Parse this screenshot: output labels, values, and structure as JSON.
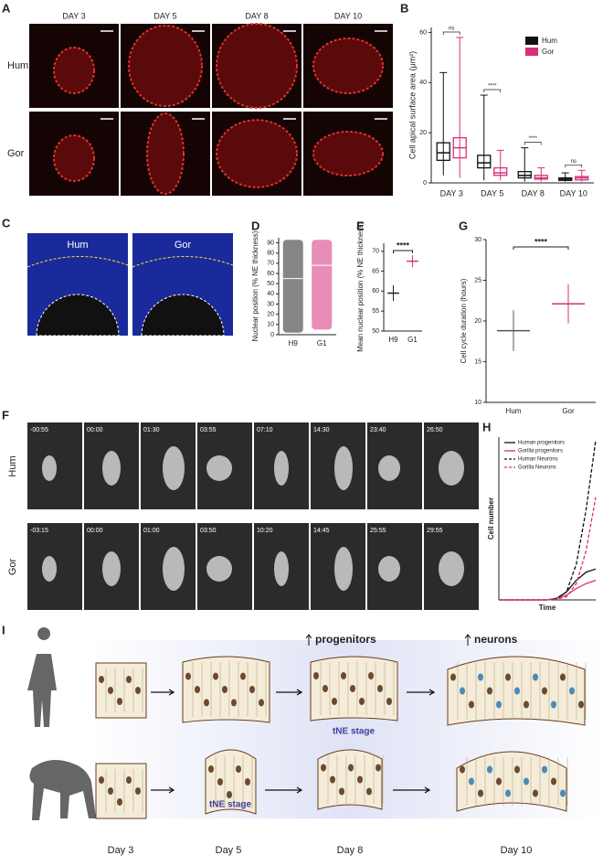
{
  "panels": {
    "A": {
      "label": "A",
      "columns": [
        "DAY 3",
        "DAY 5",
        "DAY 8",
        "DAY 10"
      ],
      "rows": [
        "Hum",
        "Gor"
      ]
    },
    "B": {
      "label": "B",
      "type": "box",
      "ylabel": "Cell apical surface area (μm²)",
      "categories": [
        "DAY 3",
        "DAY 5",
        "DAY 8",
        "DAY 10"
      ],
      "ylim": [
        0,
        62
      ],
      "yticks": [
        0,
        20,
        40,
        60
      ],
      "series": [
        {
          "name": "Hum",
          "color": "#111111",
          "boxes": [
            {
              "min": 3,
              "q1": 9,
              "median": 12,
              "q3": 16,
              "max": 44
            },
            {
              "min": 1,
              "q1": 6,
              "median": 8,
              "q3": 11,
              "max": 35
            },
            {
              "min": 0.5,
              "q1": 2,
              "median": 3,
              "q3": 4.5,
              "max": 14
            },
            {
              "min": 0.5,
              "q1": 1,
              "median": 1.5,
              "q3": 2,
              "max": 4
            }
          ]
        },
        {
          "name": "Gor",
          "color": "#d6307a",
          "boxes": [
            {
              "min": 2,
              "q1": 10,
              "median": 14,
              "q3": 18,
              "max": 58
            },
            {
              "min": 1,
              "q1": 3,
              "median": 4,
              "q3": 6,
              "max": 13
            },
            {
              "min": 0.5,
              "q1": 1.5,
              "median": 2,
              "q3": 3,
              "max": 6
            },
            {
              "min": 0.5,
              "q1": 1.2,
              "median": 2,
              "q3": 2.5,
              "max": 5
            }
          ]
        }
      ],
      "significance": [
        "ns",
        "****",
        "****",
        "ns"
      ]
    },
    "C": {
      "label": "C",
      "titles": [
        "Hum",
        "Gor"
      ]
    },
    "D": {
      "label": "D",
      "type": "scatter",
      "ylabel": "Nuclear position (% NE thickness)",
      "categories": [
        "H9",
        "G1"
      ],
      "ylim": [
        0,
        95
      ],
      "yticks": [
        0,
        10,
        20,
        30,
        40,
        50,
        60,
        70,
        80,
        90
      ],
      "series": [
        {
          "color": "#222222",
          "min": 2,
          "max": 93,
          "mean": 55
        },
        {
          "color": "#d6307a",
          "min": 5,
          "max": 93,
          "mean": 68
        }
      ]
    },
    "E": {
      "label": "E",
      "type": "scatter",
      "ylabel": "Mean nuclear position (% NE thickness)",
      "categories": [
        "H9",
        "G1"
      ],
      "ylim": [
        50,
        72
      ],
      "yticks": [
        50,
        55,
        60,
        65,
        70
      ],
      "series": [
        {
          "color": "#222222",
          "mean": 59.5,
          "sd": 2
        },
        {
          "color": "#d6307a",
          "mean": 67.5,
          "sd": 1.5
        }
      ],
      "significance": "****"
    },
    "G": {
      "label": "G",
      "type": "scatter",
      "ylabel": "Cell cycle duration (hours)",
      "categories": [
        "Hum",
        "Gor"
      ],
      "ylim": [
        10,
        30
      ],
      "yticks": [
        10,
        15,
        20,
        25,
        30
      ],
      "series": [
        {
          "color": "#555555",
          "mean": 18.8,
          "sd": 2.5
        },
        {
          "color": "#d6307a",
          "mean": 22.1,
          "sd": 2.4
        }
      ],
      "significance": "****"
    },
    "F": {
      "label": "F",
      "rows": [
        "Hum",
        "Gor"
      ],
      "times": [
        [
          "-00:55",
          "00:00",
          "01:30",
          "03:55",
          "07:10",
          "14:30",
          "23:40",
          "26:50"
        ],
        [
          "-03:15",
          "00:00",
          "01:00",
          "03:50",
          "10:20",
          "14:45",
          "25:55",
          "29:55"
        ]
      ]
    },
    "H": {
      "label": "H",
      "type": "line",
      "ylabel": "Cell number",
      "xlabel": "Time",
      "xlim": [
        0,
        10
      ],
      "ylim": [
        0,
        1
      ],
      "x": [
        0,
        5,
        6,
        7,
        8,
        9,
        10
      ],
      "series": [
        {
          "name": "Human progenitors",
          "color": "#111111",
          "dash": false,
          "values": [
            0,
            0,
            0.01,
            0.05,
            0.12,
            0.17,
            0.19
          ]
        },
        {
          "name": "Gorilla progenitors",
          "color": "#d6307a",
          "dash": false,
          "values": [
            0,
            0,
            0.01,
            0.03,
            0.07,
            0.1,
            0.12
          ]
        },
        {
          "name": "Human Neurons",
          "color": "#111111",
          "dash": true,
          "values": [
            0,
            0,
            0.01,
            0.05,
            0.22,
            0.55,
            0.98
          ]
        },
        {
          "name": "Gorilla Neurons",
          "color": "#d6307a",
          "dash": true,
          "values": [
            0,
            0,
            0.005,
            0.02,
            0.1,
            0.3,
            0.63
          ]
        }
      ]
    },
    "I": {
      "label": "I",
      "progenitors": "progenitors",
      "neurons": "neurons",
      "tne_human": "tNE stage",
      "tne_gorilla": "tNE stage",
      "days": [
        "Day 3",
        "Day 5",
        "Day 8",
        "Day 10"
      ]
    }
  }
}
